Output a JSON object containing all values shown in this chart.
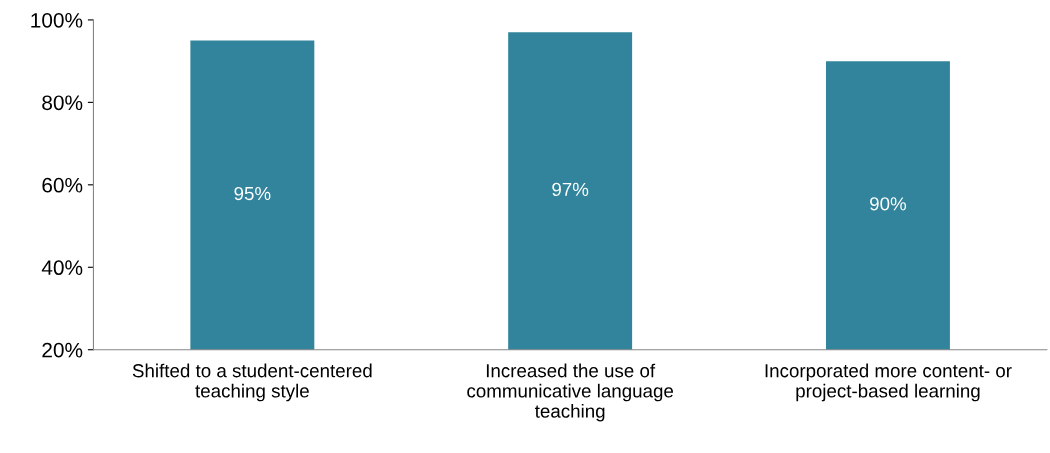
{
  "chart_data": {
    "type": "bar",
    "categories": [
      "Shifted to a student-centered\nteaching style",
      "Increased the use of\ncommunicative language\nteaching",
      "Incorporated more content- or\nproject-based learning"
    ],
    "values": [
      95,
      97,
      90
    ],
    "value_labels": [
      "95%",
      "97%",
      "90%"
    ],
    "color": "#31849b",
    "ylim": [
      20,
      100
    ],
    "yticks": [
      {
        "value": 20,
        "label": "20%"
      },
      {
        "value": 40,
        "label": "40%"
      },
      {
        "value": 60,
        "label": "60%"
      },
      {
        "value": 80,
        "label": "80%"
      },
      {
        "value": 100,
        "label": "100%"
      }
    ],
    "grid": false,
    "legend": false
  }
}
